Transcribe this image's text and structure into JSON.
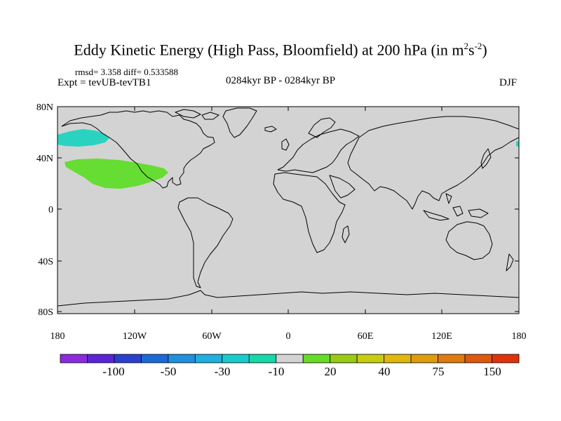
{
  "title": {
    "main": "Eddy Kinetic Energy (High Pass, Bloomfield) at 200 hPa (in m",
    "sup1": "2",
    "mid": "s",
    "sup2": "-2",
    "end": ")"
  },
  "stats": "rmsd= 3.358 diff= 0.533588",
  "expt": "Expt = tevUB-tevTB1",
  "period": "0284kyr BP - 0284kyr BP",
  "season": "DJF",
  "map": {
    "lat_labels": [
      "80N",
      "40N",
      "0",
      "40S",
      "80S"
    ],
    "lon_labels": [
      "180",
      "120W",
      "60W",
      "0",
      "60E",
      "120E",
      "180"
    ],
    "land_color": "#000000",
    "background": "#d3d3d3"
  },
  "colorbar": {
    "colors": [
      "#8a2be2",
      "#5a24d8",
      "#2b3fd0",
      "#1a6ad8",
      "#1e90e0",
      "#1eb0e0",
      "#18cccc",
      "#16d8a8",
      "#d3d3d3",
      "#66dd22",
      "#99cc11",
      "#c8cc11",
      "#e0b80c",
      "#e09c0c",
      "#e07a0c",
      "#e0580c",
      "#e0320c"
    ],
    "labels": [
      "-100",
      "-50",
      "-30",
      "-10",
      "20",
      "40",
      "75",
      "150"
    ]
  },
  "anomalies": [
    {
      "name": "north-pacific-negative",
      "color": "#2ad3c0"
    },
    {
      "name": "subtropical-pacific-positive",
      "color": "#66dd33"
    },
    {
      "name": "west-pacific-negative",
      "color": "#2ad3c0"
    }
  ]
}
